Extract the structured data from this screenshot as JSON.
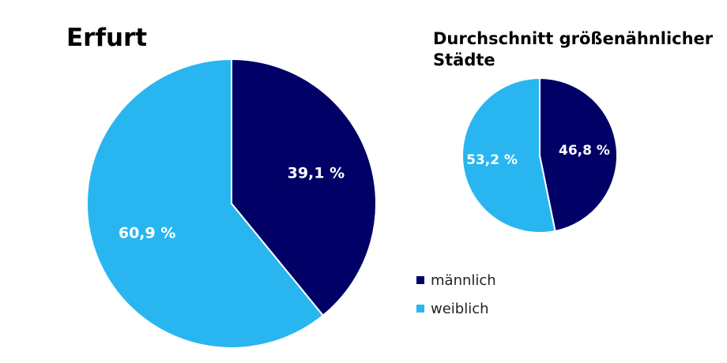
{
  "colors": {
    "maennlich": "#000066",
    "weiblich": "#29b6f0",
    "label": "#ffffff"
  },
  "chart_data": [
    {
      "type": "pie",
      "title": "Erfurt",
      "slices": [
        {
          "name": "männlich",
          "value": 39.1,
          "label": "39,1 %"
        },
        {
          "name": "weiblich",
          "value": 60.9,
          "label": "60,9 %"
        }
      ]
    },
    {
      "type": "pie",
      "title": "Durchschnitt größenähnlicher Städte",
      "slices": [
        {
          "name": "männlich",
          "value": 46.8,
          "label": "46,8 %"
        },
        {
          "name": "weiblich",
          "value": 53.2,
          "label": "53,2 %"
        }
      ]
    }
  ],
  "legend": [
    {
      "label": "männlich"
    },
    {
      "label": "weiblich"
    }
  ]
}
